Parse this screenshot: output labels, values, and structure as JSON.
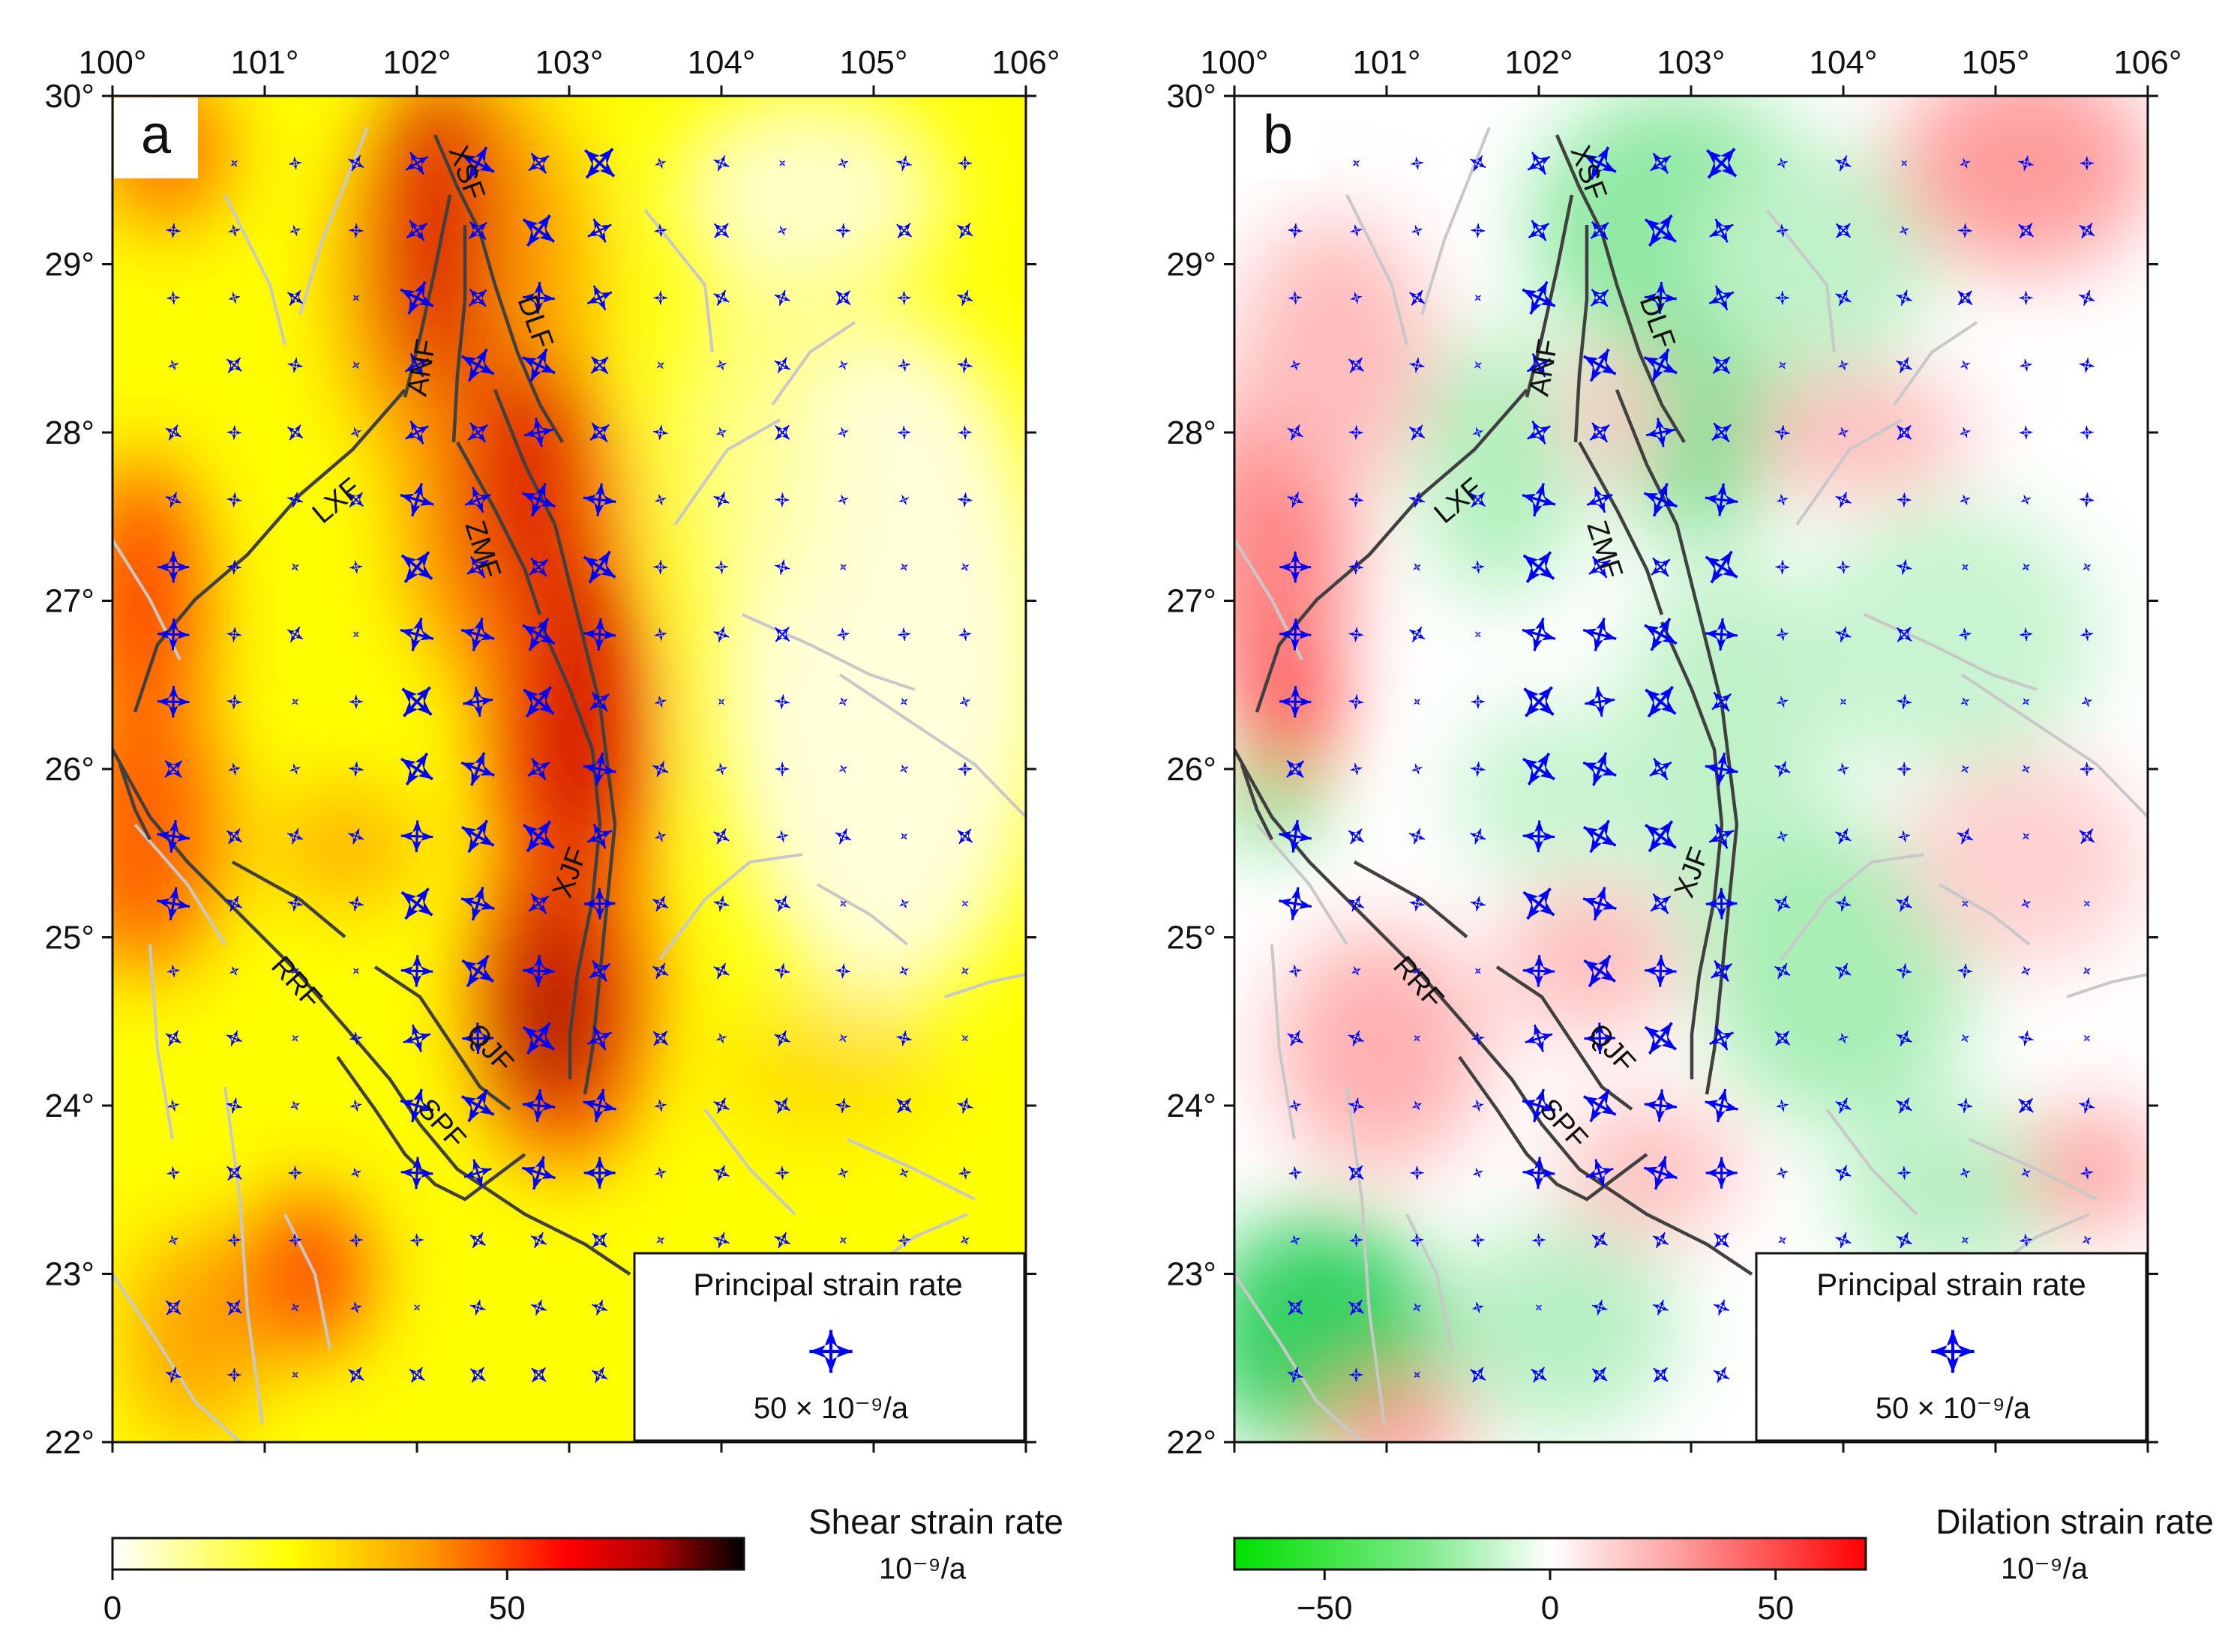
{
  "panels": [
    {
      "letter": "a",
      "x_ticks": [
        "100°",
        "101°",
        "102°",
        "103°",
        "104°",
        "105°",
        "106°"
      ],
      "y_ticks": [
        "30°",
        "29°",
        "28°",
        "27°",
        "26°",
        "25°",
        "24°",
        "23°",
        "22°"
      ],
      "legend_title": "Principal strain rate",
      "legend_scale": "50 × 10⁻⁹/a",
      "colorbar_title": "Shear strain rate",
      "colorbar_unit": "10⁻⁹/a",
      "colorbar_ticks": [
        "0",
        "50"
      ],
      "colorbar_range": [
        0,
        80
      ],
      "colorbar_tick_values": [
        0,
        50
      ],
      "colors": {
        "low": "#ffffff",
        "mid": "#ffff00",
        "high": "#ff0000",
        "max": "#000000"
      },
      "fault_labels": [
        "XSF",
        "DLF",
        "ANF",
        "LXF",
        "ZMF",
        "XJF",
        "RRF",
        "QJF",
        "SPF"
      ]
    },
    {
      "letter": "b",
      "x_ticks": [
        "100°",
        "101°",
        "102°",
        "103°",
        "104°",
        "105°",
        "106°"
      ],
      "y_ticks": [
        "30°",
        "29°",
        "28°",
        "27°",
        "26°",
        "25°",
        "24°",
        "23°",
        "22°"
      ],
      "legend_title": "Principal strain rate",
      "legend_scale": "50 × 10⁻⁹/a",
      "colorbar_title": "Dilation strain rate",
      "colorbar_unit": "10⁻⁹/a",
      "colorbar_ticks": [
        "−50",
        "0",
        "50"
      ],
      "colorbar_range": [
        -70,
        70
      ],
      "colorbar_tick_values": [
        -50,
        0,
        50
      ],
      "colors": {
        "low": "#00e000",
        "mid": "#ffffff",
        "high": "#ff0000"
      },
      "fault_labels": [
        "XSF",
        "DLF",
        "ANF",
        "LXF",
        "ZMF",
        "XJF",
        "RRF",
        "QJF",
        "SPF"
      ]
    }
  ],
  "vector_color": "#0000ff",
  "fault_color": "#404040",
  "minor_fault_color": "#c8c8c8"
}
